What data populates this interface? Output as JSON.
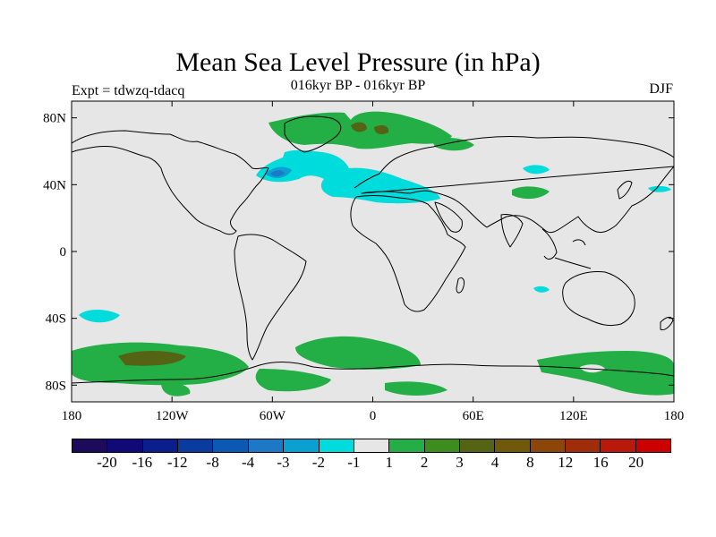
{
  "title": "Mean Sea Level Pressure (in hPa)",
  "subtitle": "016kyr BP - 016kyr BP",
  "left_label": "Expt = tdwzq-tdacq",
  "right_label": "DJF",
  "map": {
    "projection": "cylindrical-equidistant",
    "land_outline_color": "#000000",
    "background_color": "#e6e6e6",
    "lon_range": [
      -180,
      180
    ],
    "lat_range": [
      -90,
      90
    ],
    "lat_ticks": [
      {
        "lat": 80,
        "label": "80N"
      },
      {
        "lat": 40,
        "label": "40N"
      },
      {
        "lat": 0,
        "label": "0"
      },
      {
        "lat": -40,
        "label": "40S"
      },
      {
        "lat": -80,
        "label": "80S"
      }
    ],
    "lon_ticks": [
      {
        "lon": -180,
        "label": "180"
      },
      {
        "lon": -120,
        "label": "120W"
      },
      {
        "lon": -60,
        "label": "60W"
      },
      {
        "lon": 0,
        "label": "0"
      },
      {
        "lon": 60,
        "label": "60E"
      },
      {
        "lon": 120,
        "label": "120E"
      },
      {
        "lon": 180,
        "label": "180"
      }
    ]
  },
  "colorbar": {
    "colors": [
      "#1e0a5a",
      "#0f0a78",
      "#0a1e8c",
      "#0a3ca0",
      "#0a5ab4",
      "#1e78c8",
      "#0aa0d2",
      "#00dcdc",
      "#e6e6e6",
      "#23af46",
      "#3c8c1e",
      "#556414",
      "#6e5a0a",
      "#8c460a",
      "#a02d0a",
      "#b9190a",
      "#cd0000"
    ],
    "labels": [
      "-20",
      "-16",
      "-12",
      "-8",
      "-4",
      "-3",
      "-2",
      "-1",
      "1",
      "2",
      "3",
      "4",
      "8",
      "12",
      "16",
      "20"
    ]
  },
  "chart_data": {
    "type": "heatmap",
    "title": "Mean Sea Level Pressure (in hPa)",
    "subtitle": "016kyr BP - 016kyr BP",
    "season": "DJF",
    "experiment": "tdwzq-tdacq",
    "levels": [
      -20,
      -16,
      -12,
      -8,
      -4,
      -3,
      -2,
      -1,
      1,
      2,
      3,
      4,
      8,
      12,
      16,
      20
    ],
    "anomaly_regions": [
      {
        "region": "North Atlantic / western Europe",
        "value_range": [
          -3,
          -1
        ],
        "min": -3
      },
      {
        "region": "Mediterranean",
        "value_range": [
          -2,
          -1
        ]
      },
      {
        "region": "Central Asia",
        "value_range": [
          -2,
          -1
        ]
      },
      {
        "region": "Greenland / Arctic",
        "value_range": [
          1,
          3
        ],
        "max": 3
      },
      {
        "region": "Southern Ocean (South Pacific)",
        "value_range": [
          1,
          3
        ],
        "max": 3
      },
      {
        "region": "Southern Ocean (South Atlantic)",
        "value_range": [
          1,
          2
        ]
      },
      {
        "region": "Southern Ocean (Indian sector)",
        "value_range": [
          1,
          2
        ]
      },
      {
        "region": "South Pacific mid-latitudes",
        "value_range": [
          -2,
          -1
        ]
      },
      {
        "region": "North Pacific / Siberia",
        "value_range": [
          -2,
          -1
        ]
      },
      {
        "region": "East Asia",
        "value_range": [
          1,
          2
        ]
      },
      {
        "region": "Australian sector",
        "value_range": [
          -2,
          -1
        ]
      }
    ],
    "lon_range": [
      -180,
      180
    ],
    "lat_range": [
      -90,
      90
    ]
  }
}
